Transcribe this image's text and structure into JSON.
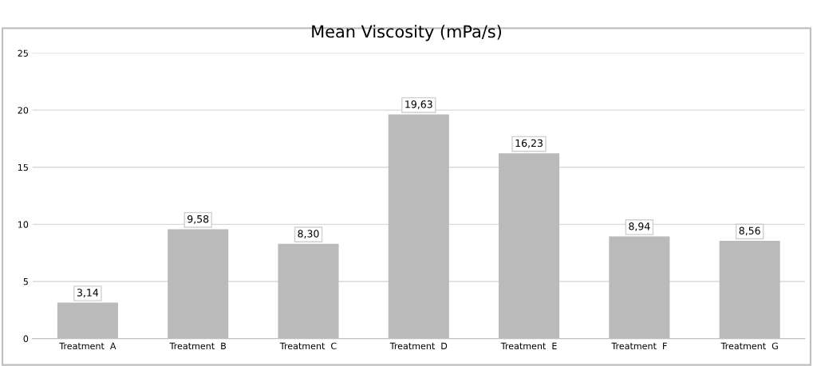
{
  "chart_data": {
    "type": "bar",
    "title": "Mean Viscosity (mPa/s)",
    "categories": [
      "Treatment  A",
      "Treatment  B",
      "Treatment  C",
      "Treatment  D",
      "Treatment  E",
      "Treatment  F",
      "Treatment  G"
    ],
    "values": [
      3.14,
      9.58,
      8.3,
      19.63,
      16.23,
      8.94,
      8.56
    ],
    "value_labels": [
      "3,14",
      "9,58",
      "8,30",
      "19,63",
      "16,23",
      "8,94",
      "8,56"
    ],
    "color": "#bababa",
    "ylim": [
      0,
      25
    ],
    "yticks": [
      0,
      5,
      10,
      15,
      20,
      25
    ],
    "grid": "y"
  }
}
